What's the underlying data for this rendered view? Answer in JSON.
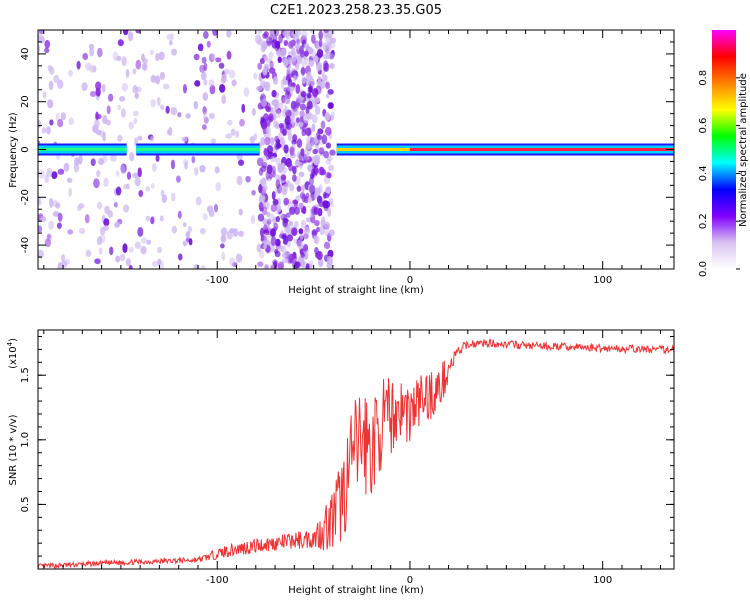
{
  "title": "C2E1.2023.258.23.35.G05",
  "chart_data": [
    {
      "type": "heatmap",
      "xlabel": "Height of straight line (km)",
      "ylabel": "Frequency (Hz)",
      "xlim": [
        -193,
        137
      ],
      "ylim": [
        -50,
        50
      ],
      "xticks": [
        -100,
        0,
        100
      ],
      "yticks": [
        -40,
        -20,
        0,
        20,
        40
      ],
      "colorbar": {
        "label": "Normalized spectral amplitude",
        "range": [
          0.0,
          1.0
        ],
        "ticks": [
          0.0,
          0.2,
          0.4,
          0.6,
          0.8
        ],
        "colors": [
          "#ffffff",
          "#d9c2f0",
          "#8000ff",
          "#0000ff",
          "#00ffff",
          "#00ff00",
          "#ffff00",
          "#ff8000",
          "#ff0000",
          "#ff00ff"
        ]
      },
      "segments": [
        {
          "x": [
            -193,
            -147
          ],
          "freq_hz": 0,
          "amplitude": 0.3
        },
        {
          "x": [
            -142,
            -78
          ],
          "freq_hz": 0,
          "amplitude": 0.4
        },
        {
          "x": [
            -38,
            0
          ],
          "freq_hz": 0,
          "amplitude": 0.6
        },
        {
          "x": [
            0,
            137
          ],
          "freq_hz": 0,
          "amplitude": 0.9
        }
      ],
      "noise_regions": [
        {
          "x": [
            -193,
            -40
          ],
          "level": "moderate"
        },
        {
          "x": [
            -78,
            -40
          ],
          "level": "high"
        }
      ]
    },
    {
      "type": "line",
      "xlabel": "Height of straight line (km)",
      "ylabel": "SNR (10 * v/v)",
      "y_multiplier": "(x10^4)",
      "y_multiplier_base": "(x10",
      "y_multiplier_exp": "4",
      "xlim": [
        -193,
        137
      ],
      "ylim": [
        0,
        1.85
      ],
      "xticks": [
        -100,
        0,
        100
      ],
      "yticks": [
        0.5,
        1.0,
        1.5
      ],
      "ytick_labels": [
        "0.5",
        "1.0",
        "1.5"
      ],
      "color": "#ee3333",
      "x": [
        -193,
        -150,
        -110,
        -95,
        -80,
        -65,
        -50,
        -40,
        -35,
        -30,
        -25,
        -20,
        -15,
        -10,
        -5,
        0,
        5,
        10,
        15,
        20,
        25,
        30,
        40,
        50,
        60,
        80,
        100,
        120,
        137
      ],
      "y": [
        0.02,
        0.05,
        0.07,
        0.14,
        0.18,
        0.21,
        0.24,
        0.38,
        0.55,
        0.85,
        1.02,
        0.92,
        1.12,
        1.18,
        1.25,
        1.2,
        1.3,
        1.35,
        1.38,
        1.55,
        1.68,
        1.74,
        1.75,
        1.74,
        1.73,
        1.72,
        1.71,
        1.7,
        1.7
      ],
      "noise_amplitude": [
        0.02,
        0.02,
        0.02,
        0.05,
        0.06,
        0.06,
        0.08,
        0.25,
        0.35,
        0.4,
        0.45,
        0.4,
        0.35,
        0.3,
        0.25,
        0.25,
        0.22,
        0.2,
        0.2,
        0.1,
        0.05,
        0.03,
        0.03,
        0.03,
        0.03,
        0.03,
        0.03,
        0.03,
        0.03
      ]
    }
  ]
}
